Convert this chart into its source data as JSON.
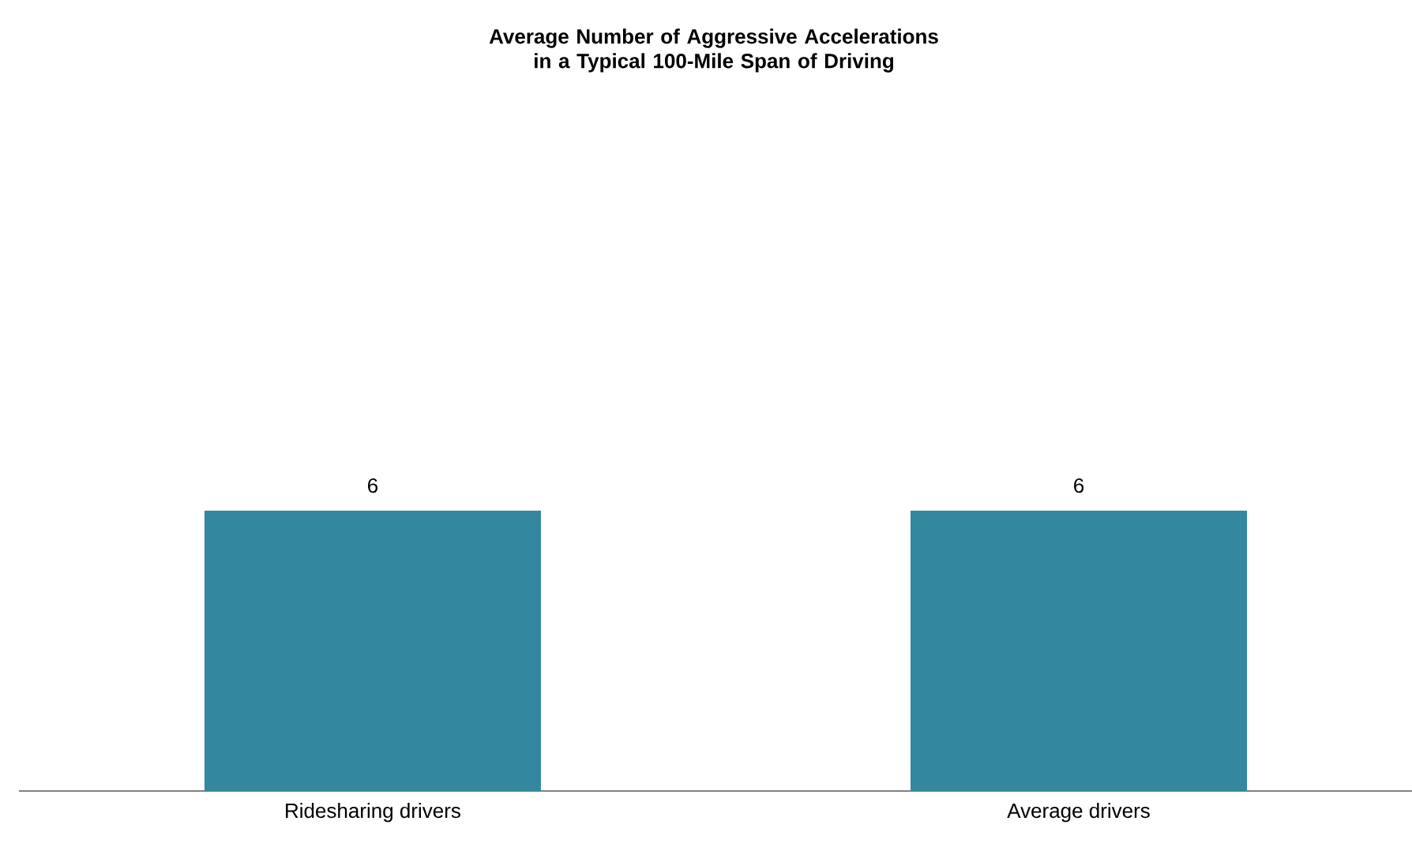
{
  "chart_data": {
    "type": "bar",
    "title": "Average Number of Aggressive Accelerations\nin a Typical 100-Mile Span of Driving",
    "categories": [
      "Ridesharing drivers",
      "Average drivers"
    ],
    "values": [
      6,
      6
    ],
    "color": "#33879e",
    "data_labels": true
  }
}
